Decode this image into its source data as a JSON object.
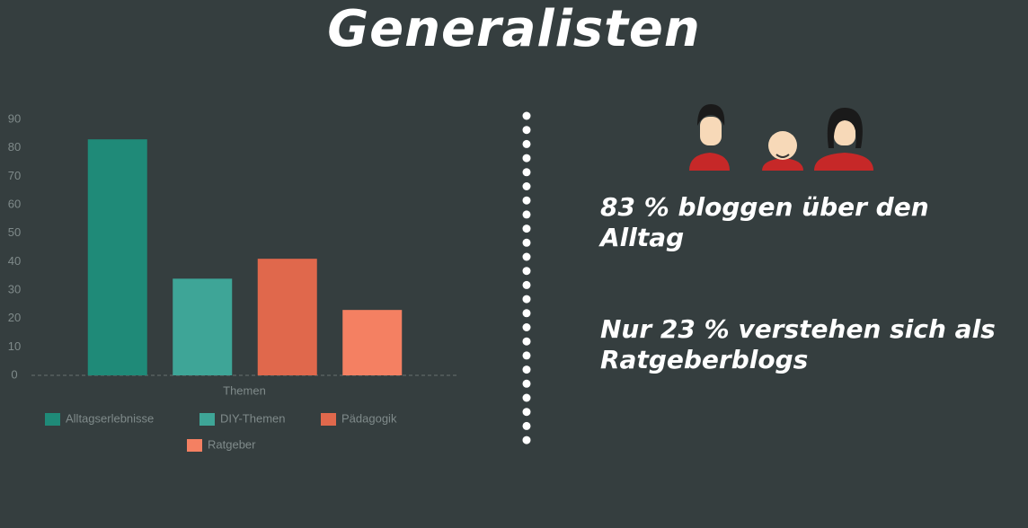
{
  "title": "Generalisten",
  "statements": [
    "83 % bloggen über den Alltag",
    "Nur 23 % verstehen sich als Ratgeberblogs"
  ],
  "chart_data": {
    "type": "bar",
    "xlabel": "Themen",
    "categories": [
      "Themen"
    ],
    "series": [
      {
        "name": "Alltagserlebnisse",
        "color": "#1f8a78",
        "values": [
          83
        ]
      },
      {
        "name": "DIY-Themen",
        "color": "#3ea597",
        "values": [
          34
        ]
      },
      {
        "name": "Pädagogik",
        "color": "#e0684c",
        "values": [
          41
        ]
      },
      {
        "name": "Ratgeber",
        "color": "#f48062",
        "values": [
          23
        ]
      }
    ],
    "ylim": [
      0,
      90
    ],
    "yticks": [
      0,
      10,
      20,
      30,
      40,
      50,
      60,
      70,
      80,
      90
    ],
    "grid": false
  }
}
